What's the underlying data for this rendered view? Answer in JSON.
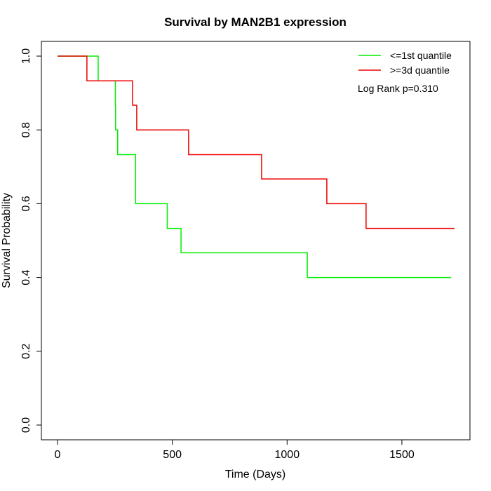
{
  "chart_data": {
    "type": "line",
    "title": "Survival by MAN2B1 expression",
    "xlabel": "Time (Days)",
    "ylabel": "Survival Probability",
    "xlim": [
      0,
      1750
    ],
    "ylim": [
      0,
      1
    ],
    "xticks": [
      0,
      500,
      1000,
      1500
    ],
    "yticks": [
      0.0,
      0.2,
      0.4,
      0.6,
      0.8,
      1.0
    ],
    "ytick_labels": [
      "0.0",
      "0.2",
      "0.4",
      "0.6",
      "0.8",
      "1.0"
    ],
    "legend_placement": "top-right",
    "annotation": "Log Rank p=0.310",
    "series": [
      {
        "name": "<=1st quantile",
        "color": "#00ee00",
        "steps": [
          [
            0,
            1.0
          ],
          [
            177,
            0.933
          ],
          [
            252,
            0.867
          ],
          [
            253,
            0.8
          ],
          [
            262,
            0.733
          ],
          [
            340,
            0.6
          ],
          [
            478,
            0.533
          ],
          [
            538,
            0.467
          ],
          [
            1088,
            0.4
          ],
          [
            1714,
            0.4
          ]
        ]
      },
      {
        "name": ">=3d quantile",
        "color": "#ee0000",
        "steps": [
          [
            0,
            1.0
          ],
          [
            128,
            0.933
          ],
          [
            327,
            0.867
          ],
          [
            345,
            0.8
          ],
          [
            571,
            0.733
          ],
          [
            889,
            0.667
          ],
          [
            1173,
            0.6
          ],
          [
            1344,
            0.533
          ],
          [
            1729,
            0.533
          ]
        ]
      }
    ]
  }
}
